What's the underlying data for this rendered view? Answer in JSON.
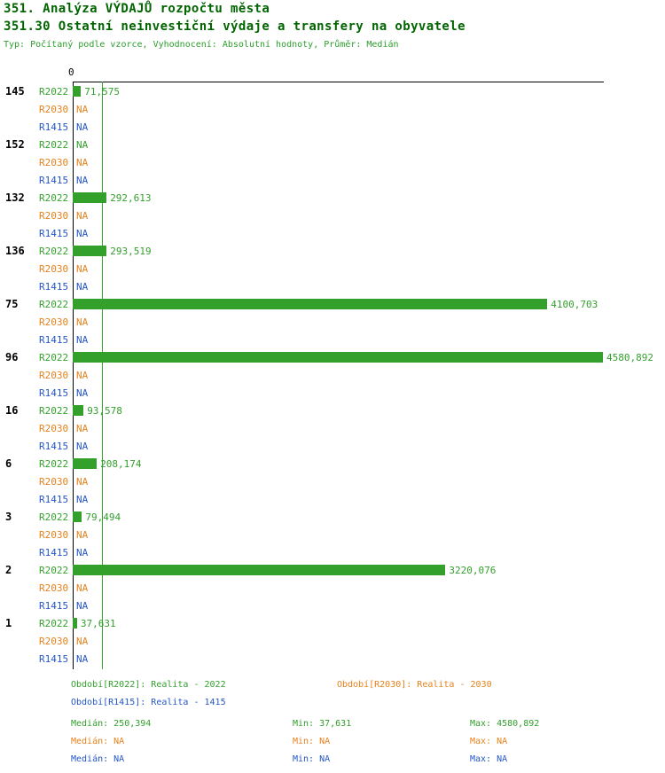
{
  "header": {
    "title": "351. Analýza VÝDAJŮ rozpočtu města",
    "subtitle": "351.30 Ostatní neinvestiční výdaje a transfery na obyvatele",
    "meta": "Typ: Počítaný podle vzorce, Vyhodnocení: Absolutní hodnoty, Průměr: Medián"
  },
  "colors": {
    "r2022": "#33a02c",
    "r2030": "#e6821e",
    "r1415": "#2457c5",
    "title": "#006400",
    "meta": "#2e9e2e",
    "axis": "#000000",
    "median_line": "#33a02c"
  },
  "axis": {
    "zero_label": "0"
  },
  "chart_data": {
    "type": "bar",
    "orientation": "horizontal",
    "xlim": [
      0,
      4580.892
    ],
    "median_value": 250.394,
    "series_names": [
      "R2022",
      "R2030",
      "R1415"
    ],
    "groups": [
      {
        "category": "145",
        "rows": [
          {
            "series": "R2022",
            "value": 71.575,
            "label": "71,575"
          },
          {
            "series": "R2030",
            "value": null,
            "label": "NA"
          },
          {
            "series": "R1415",
            "value": null,
            "label": "NA"
          }
        ]
      },
      {
        "category": "152",
        "rows": [
          {
            "series": "R2022",
            "value": null,
            "label": "NA"
          },
          {
            "series": "R2030",
            "value": null,
            "label": "NA"
          },
          {
            "series": "R1415",
            "value": null,
            "label": "NA"
          }
        ]
      },
      {
        "category": "132",
        "rows": [
          {
            "series": "R2022",
            "value": 292.613,
            "label": "292,613"
          },
          {
            "series": "R2030",
            "value": null,
            "label": "NA"
          },
          {
            "series": "R1415",
            "value": null,
            "label": "NA"
          }
        ]
      },
      {
        "category": "136",
        "rows": [
          {
            "series": "R2022",
            "value": 293.519,
            "label": "293,519"
          },
          {
            "series": "R2030",
            "value": null,
            "label": "NA"
          },
          {
            "series": "R1415",
            "value": null,
            "label": "NA"
          }
        ]
      },
      {
        "category": "75",
        "rows": [
          {
            "series": "R2022",
            "value": 4100.703,
            "label": "4100,703"
          },
          {
            "series": "R2030",
            "value": null,
            "label": "NA"
          },
          {
            "series": "R1415",
            "value": null,
            "label": "NA"
          }
        ]
      },
      {
        "category": "96",
        "rows": [
          {
            "series": "R2022",
            "value": 4580.892,
            "label": "4580,892"
          },
          {
            "series": "R2030",
            "value": null,
            "label": "NA"
          },
          {
            "series": "R1415",
            "value": null,
            "label": "NA"
          }
        ]
      },
      {
        "category": "16",
        "rows": [
          {
            "series": "R2022",
            "value": 93.578,
            "label": "93,578"
          },
          {
            "series": "R2030",
            "value": null,
            "label": "NA"
          },
          {
            "series": "R1415",
            "value": null,
            "label": "NA"
          }
        ]
      },
      {
        "category": "6",
        "rows": [
          {
            "series": "R2022",
            "value": 208.174,
            "label": "208,174"
          },
          {
            "series": "R2030",
            "value": null,
            "label": "NA"
          },
          {
            "series": "R1415",
            "value": null,
            "label": "NA"
          }
        ]
      },
      {
        "category": "3",
        "rows": [
          {
            "series": "R2022",
            "value": 79.494,
            "label": "79,494"
          },
          {
            "series": "R2030",
            "value": null,
            "label": "NA"
          },
          {
            "series": "R1415",
            "value": null,
            "label": "NA"
          }
        ]
      },
      {
        "category": "2",
        "rows": [
          {
            "series": "R2022",
            "value": 3220.076,
            "label": "3220,076"
          },
          {
            "series": "R2030",
            "value": null,
            "label": "NA"
          },
          {
            "series": "R1415",
            "value": null,
            "label": "NA"
          }
        ]
      },
      {
        "category": "1",
        "rows": [
          {
            "series": "R2022",
            "value": 37.631,
            "label": "37,631"
          },
          {
            "series": "R2030",
            "value": null,
            "label": "NA"
          },
          {
            "series": "R1415",
            "value": null,
            "label": "NA"
          }
        ]
      }
    ]
  },
  "legend": {
    "items": [
      {
        "series": "R2022",
        "label": "Období[R2022]: Realita - 2022"
      },
      {
        "series": "R2030",
        "label": "Období[R2030]: Realita - 2030"
      },
      {
        "series": "R1415",
        "label": "Období[R1415]: Realita - 1415"
      }
    ]
  },
  "stats": {
    "rows": [
      {
        "series": "R2022",
        "median": "Medián: 250,394",
        "min": "Min: 37,631",
        "max": "Max: 4580,892"
      },
      {
        "series": "R2030",
        "median": "Medián: NA",
        "min": "Min: NA",
        "max": "Max: NA"
      },
      {
        "series": "R1415",
        "median": "Medián: NA",
        "min": "Min: NA",
        "max": "Max: NA"
      }
    ]
  }
}
